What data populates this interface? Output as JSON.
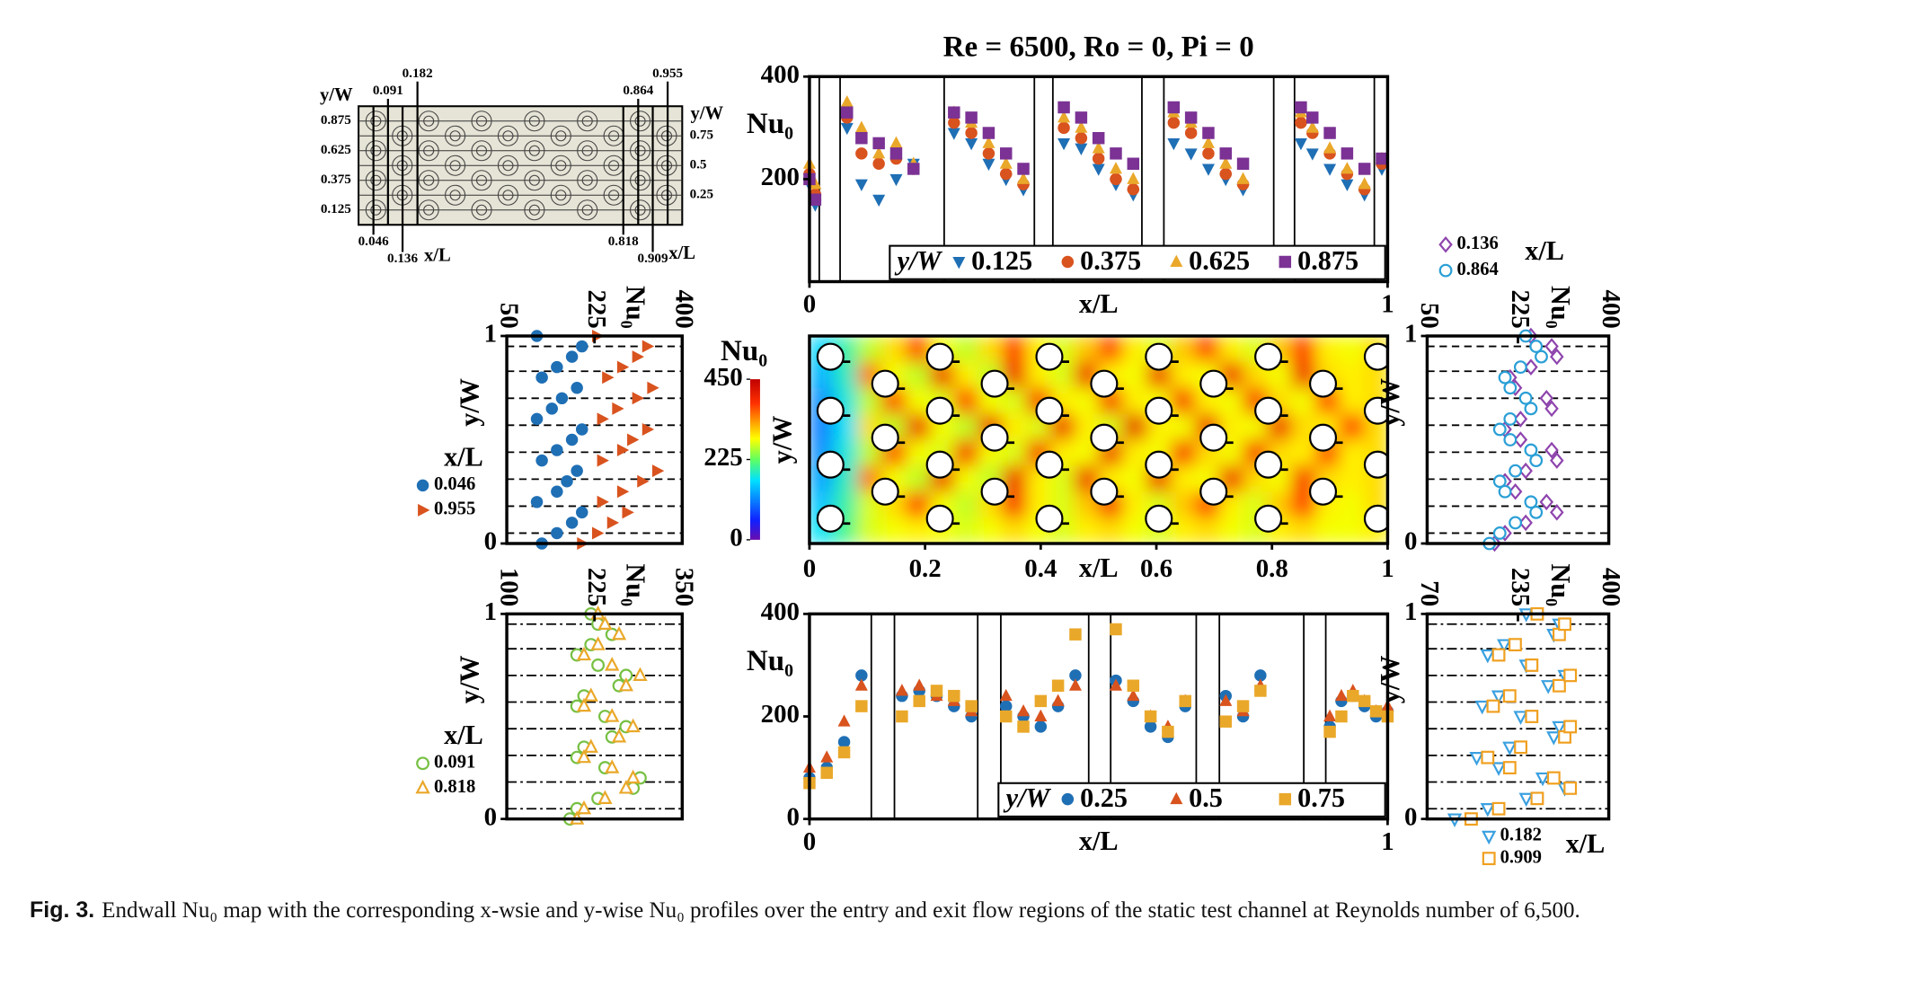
{
  "chart_data": [
    {
      "type": "scatter",
      "title": "Re = 6500, Ro = 0, Pi = 0",
      "value_axis": "y",
      "xlabel": "x/L",
      "ylabel": "Nu₀",
      "legend_title": "y/W",
      "legend": "lower right",
      "xlim": [
        0,
        1
      ],
      "ylim": [
        0,
        400
      ],
      "xticks": [
        0,
        1
      ],
      "yticks": [
        200,
        400
      ],
      "x": [
        0,
        0.01,
        0.065,
        0.09,
        0.12,
        0.15,
        0.18,
        0.25,
        0.28,
        0.31,
        0.34,
        0.37,
        0.44,
        0.47,
        0.5,
        0.53,
        0.56,
        0.63,
        0.66,
        0.69,
        0.72,
        0.75,
        0.85,
        0.87,
        0.9,
        0.93,
        0.96,
        0.99
      ],
      "series": [
        {
          "name": "0.125",
          "color": "#1f6fb5",
          "marker": "triangle-down",
          "filled": true,
          "values": [
            190,
            150,
            300,
            190,
            160,
            200,
            230,
            290,
            270,
            230,
            200,
            180,
            270,
            260,
            220,
            190,
            170,
            270,
            250,
            220,
            200,
            180,
            270,
            250,
            220,
            190,
            170,
            220
          ]
        },
        {
          "name": "0.375",
          "color": "#d9531e",
          "marker": "circle",
          "filled": true,
          "values": [
            210,
            170,
            320,
            250,
            230,
            240,
            220,
            310,
            290,
            250,
            210,
            190,
            300,
            280,
            240,
            200,
            180,
            310,
            290,
            250,
            210,
            190,
            310,
            290,
            250,
            210,
            180,
            230
          ]
        },
        {
          "name": "0.625",
          "color": "#eaa82a",
          "marker": "triangle-up",
          "filled": true,
          "values": [
            230,
            190,
            350,
            300,
            250,
            270,
            230,
            330,
            310,
            270,
            230,
            200,
            320,
            300,
            260,
            220,
            200,
            330,
            310,
            270,
            230,
            200,
            330,
            300,
            260,
            220,
            190,
            240
          ]
        },
        {
          "name": "0.875",
          "color": "#7b3294",
          "marker": "square",
          "filled": true,
          "values": [
            200,
            160,
            330,
            280,
            270,
            250,
            220,
            330,
            320,
            290,
            250,
            220,
            340,
            320,
            280,
            250,
            230,
            340,
            320,
            290,
            250,
            230,
            340,
            320,
            290,
            250,
            220,
            240
          ]
        }
      ]
    },
    {
      "type": "scatter",
      "value_axis": "x",
      "xlabel": "Nu₀",
      "ylabel": "y/W",
      "legend_title": "x/L",
      "legend": "left",
      "xlim": [
        50,
        400
      ],
      "ylim": [
        0,
        1
      ],
      "xticks": [
        50,
        225,
        400
      ],
      "yticks": [
        0,
        1
      ],
      "y": [
        0,
        0.05,
        0.1,
        0.15,
        0.2,
        0.25,
        0.3,
        0.35,
        0.4,
        0.45,
        0.5,
        0.55,
        0.6,
        0.65,
        0.7,
        0.75,
        0.8,
        0.85,
        0.9,
        0.95,
        1
      ],
      "series": [
        {
          "name": "0.046",
          "color": "#1f6fb5",
          "marker": "circle",
          "filled": true,
          "values": [
            120,
            150,
            180,
            200,
            110,
            150,
            170,
            190,
            120,
            150,
            180,
            200,
            110,
            140,
            160,
            190,
            120,
            150,
            180,
            200,
            110
          ]
        },
        {
          "name": "0.955",
          "color": "#d9531e",
          "marker": "triangle-right",
          "filled": true,
          "values": [
            200,
            230,
            260,
            290,
            240,
            280,
            320,
            350,
            240,
            280,
            300,
            330,
            240,
            270,
            310,
            340,
            250,
            280,
            310,
            330,
            230
          ]
        }
      ]
    },
    {
      "type": "heatmap",
      "xlabel": "x/L",
      "ylabel": "y/W",
      "colorbar_label": "Nu₀",
      "colormap": "jet",
      "xlim": [
        0,
        1
      ],
      "ylim": [
        0,
        1
      ],
      "xticks": [
        0,
        0.2,
        0.4,
        0.6,
        0.8,
        1
      ],
      "zlim": [
        0,
        450
      ],
      "zticks": [
        0,
        225,
        450
      ],
      "z": [
        [
          160,
          200,
          260,
          300,
          380,
          280,
          260,
          300,
          380,
          290,
          270,
          310,
          380,
          290,
          270,
          310,
          380,
          290,
          270,
          310,
          380,
          290,
          280,
          300
        ],
        [
          140,
          190,
          350,
          280,
          260,
          400,
          290,
          260,
          400,
          290,
          270,
          400,
          290,
          280,
          400,
          290,
          280,
          400,
          300,
          280,
          400,
          300,
          290,
          300
        ],
        [
          120,
          180,
          260,
          380,
          280,
          270,
          380,
          280,
          270,
          390,
          290,
          280,
          390,
          290,
          280,
          390,
          290,
          280,
          390,
          300,
          280,
          380,
          290,
          300
        ],
        [
          110,
          170,
          300,
          260,
          400,
          280,
          260,
          400,
          290,
          270,
          400,
          290,
          270,
          410,
          290,
          280,
          400,
          290,
          280,
          400,
          300,
          290,
          380,
          300
        ],
        [
          120,
          180,
          260,
          380,
          280,
          270,
          390,
          280,
          270,
          390,
          290,
          280,
          400,
          290,
          280,
          390,
          300,
          280,
          390,
          300,
          290,
          380,
          290,
          300
        ],
        [
          130,
          190,
          350,
          280,
          260,
          400,
          280,
          260,
          400,
          290,
          270,
          400,
          290,
          280,
          400,
          290,
          280,
          400,
          300,
          280,
          390,
          300,
          290,
          300
        ],
        [
          150,
          200,
          270,
          300,
          380,
          280,
          260,
          300,
          390,
          290,
          270,
          310,
          390,
          290,
          270,
          310,
          380,
          290,
          270,
          310,
          380,
          290,
          280,
          300
        ],
        [
          170,
          210,
          270,
          280,
          290,
          280,
          270,
          280,
          300,
          280,
          270,
          290,
          300,
          280,
          270,
          290,
          300,
          280,
          270,
          290,
          300,
          280,
          280,
          290
        ]
      ]
    },
    {
      "type": "scatter",
      "value_axis": "x",
      "xlabel": "Nu₀",
      "ylabel": "y/W",
      "legend_title": "x/L",
      "legend": "above",
      "xlim": [
        50,
        400
      ],
      "ylim": [
        0,
        1
      ],
      "xticks": [
        50,
        225,
        400
      ],
      "yticks": [
        0,
        1
      ],
      "y": [
        0,
        0.05,
        0.1,
        0.15,
        0.2,
        0.25,
        0.3,
        0.35,
        0.4,
        0.45,
        0.5,
        0.55,
        0.6,
        0.65,
        0.7,
        0.75,
        0.8,
        0.85,
        0.9,
        0.95,
        1
      ],
      "series": [
        {
          "name": "0.136",
          "color": "#8e44ad",
          "marker": "diamond",
          "filled": false,
          "values": [
            180,
            200,
            240,
            300,
            280,
            220,
            200,
            240,
            300,
            290,
            230,
            200,
            230,
            290,
            280,
            220,
            210,
            250,
            300,
            290,
            250
          ]
        },
        {
          "name": "0.864",
          "color": "#2a9fd6",
          "marker": "circle",
          "filled": false,
          "values": [
            170,
            190,
            220,
            260,
            250,
            200,
            190,
            220,
            260,
            250,
            210,
            190,
            210,
            250,
            240,
            210,
            200,
            230,
            270,
            260,
            240
          ]
        }
      ]
    },
    {
      "type": "scatter",
      "value_axis": "x",
      "xlabel": "Nu₀",
      "ylabel": "y/W",
      "legend_title": "x/L",
      "legend": "left",
      "xlim": [
        100,
        350
      ],
      "ylim": [
        0,
        1
      ],
      "xticks": [
        100,
        225,
        350
      ],
      "yticks": [
        0,
        1
      ],
      "y": [
        0,
        0.05,
        0.1,
        0.15,
        0.2,
        0.25,
        0.3,
        0.35,
        0.4,
        0.45,
        0.5,
        0.55,
        0.6,
        0.65,
        0.7,
        0.75,
        0.8,
        0.85,
        0.9,
        0.95,
        1
      ],
      "series": [
        {
          "name": "0.091",
          "color": "#77c043",
          "marker": "circle",
          "filled": false,
          "values": [
            190,
            200,
            230,
            280,
            290,
            240,
            200,
            210,
            250,
            270,
            240,
            200,
            210,
            260,
            270,
            230,
            200,
            220,
            250,
            230,
            220
          ]
        },
        {
          "name": "0.818",
          "color": "#eaa82a",
          "marker": "triangle-up",
          "filled": false,
          "values": [
            200,
            210,
            240,
            270,
            280,
            250,
            210,
            220,
            260,
            280,
            250,
            210,
            220,
            270,
            290,
            250,
            210,
            230,
            260,
            240,
            230
          ]
        }
      ]
    },
    {
      "type": "scatter",
      "value_axis": "y",
      "xlabel": "x/L",
      "ylabel": "Nu₀",
      "legend_title": "y/W",
      "legend": "lower right",
      "xlim": [
        0,
        1
      ],
      "ylim": [
        0,
        400
      ],
      "xticks": [
        0,
        1
      ],
      "yticks": [
        0,
        200,
        400
      ],
      "x": [
        0,
        0.03,
        0.06,
        0.09,
        0.16,
        0.19,
        0.22,
        0.25,
        0.28,
        0.34,
        0.37,
        0.4,
        0.43,
        0.46,
        0.53,
        0.56,
        0.59,
        0.62,
        0.65,
        0.72,
        0.75,
        0.78,
        0.9,
        0.92,
        0.94,
        0.96,
        0.98,
        1
      ],
      "series": [
        {
          "name": "0.25",
          "color": "#1f6fb5",
          "marker": "circle",
          "filled": true,
          "values": [
            80,
            100,
            150,
            280,
            240,
            250,
            240,
            220,
            200,
            220,
            200,
            180,
            220,
            280,
            270,
            230,
            180,
            160,
            220,
            240,
            200,
            280,
            180,
            230,
            240,
            220,
            200,
            210
          ]
        },
        {
          "name": "0.5",
          "color": "#d9531e",
          "marker": "triangle-up",
          "filled": true,
          "values": [
            100,
            120,
            190,
            260,
            250,
            260,
            240,
            230,
            210,
            240,
            210,
            200,
            230,
            260,
            260,
            240,
            200,
            180,
            230,
            230,
            210,
            260,
            200,
            240,
            250,
            230,
            210,
            220
          ]
        },
        {
          "name": "0.75",
          "color": "#eaa82a",
          "marker": "square",
          "filled": true,
          "values": [
            70,
            90,
            130,
            220,
            200,
            230,
            250,
            240,
            220,
            200,
            180,
            230,
            260,
            360,
            370,
            260,
            200,
            170,
            230,
            190,
            220,
            250,
            170,
            200,
            240,
            230,
            210,
            200
          ]
        }
      ]
    },
    {
      "type": "scatter",
      "value_axis": "x",
      "xlabel": "Nu₀",
      "ylabel": "y/W",
      "legend_title": "x/L",
      "legend": "below",
      "xlim": [
        70,
        400
      ],
      "ylim": [
        0,
        1
      ],
      "xticks": [
        70,
        235,
        400
      ],
      "yticks": [
        0,
        1
      ],
      "y": [
        0,
        0.05,
        0.1,
        0.15,
        0.2,
        0.25,
        0.3,
        0.35,
        0.4,
        0.45,
        0.5,
        0.55,
        0.6,
        0.65,
        0.7,
        0.75,
        0.8,
        0.85,
        0.9,
        0.95,
        1
      ],
      "series": [
        {
          "name": "0.182",
          "color": "#3aa0e0",
          "marker": "triangle-down",
          "filled": false,
          "values": [
            120,
            180,
            250,
            320,
            280,
            200,
            160,
            220,
            300,
            310,
            240,
            170,
            200,
            290,
            320,
            250,
            180,
            210,
            300,
            310,
            250
          ]
        },
        {
          "name": "0.909",
          "color": "#f0a020",
          "marker": "square",
          "filled": false,
          "values": [
            150,
            200,
            270,
            330,
            300,
            220,
            180,
            240,
            320,
            330,
            260,
            190,
            220,
            310,
            330,
            260,
            200,
            230,
            310,
            320,
            270
          ]
        }
      ]
    }
  ],
  "schematic": {
    "x_label": "x/L",
    "y_label": "y/W",
    "x_top": [
      0.091,
      0.182,
      0.864,
      0.955
    ],
    "x_bottom": [
      0.046,
      0.136,
      0.818,
      0.909
    ],
    "y_left": [
      0.875,
      0.625,
      0.375,
      0.125
    ],
    "y_right": [
      0.75,
      0.5,
      0.25
    ]
  },
  "caption": {
    "label": "Fig. 3.",
    "text": "Endwall Nu₀ map with the corresponding x-wsie and y-wise Nu₀ profiles over the entry and exit flow regions of the static test channel at Reynolds number of 6,500."
  }
}
